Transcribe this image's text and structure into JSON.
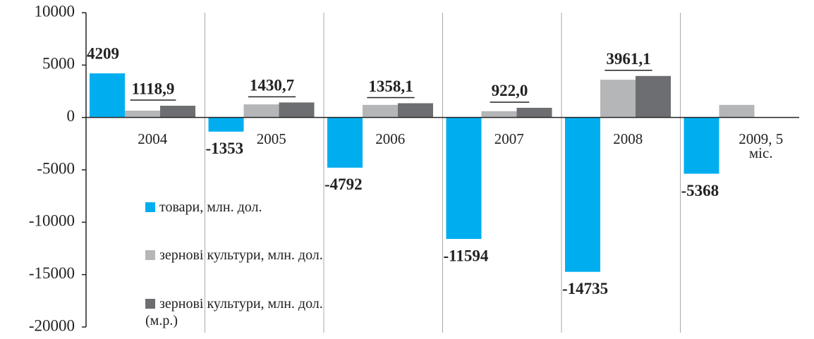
{
  "chart_data": {
    "type": "bar",
    "categories": [
      "2004",
      "2005",
      "2006",
      "2007",
      "2008",
      "2009, 5 міс."
    ],
    "series": [
      {
        "name": "товари, млн. дол.",
        "color": "#00aeef",
        "values": [
          4209,
          -1353,
          -4792,
          -11594,
          -14735,
          -5368
        ]
      },
      {
        "name": "зернові культури, млн. дол.",
        "color": "#b5b6b8",
        "values": [
          650,
          1250,
          1200,
          600,
          3600,
          1200
        ]
      },
      {
        "name": "зернові культури, млн. дол. (м.р.)",
        "color": "#6d6e71",
        "values": [
          1118.9,
          1430.7,
          1358.1,
          922.0,
          3961.1,
          null
        ],
        "value_labels": [
          "1118,9",
          "1430,7",
          "1358,1",
          "922,0",
          "3961,1",
          null
        ]
      }
    ],
    "ylim": [
      -20000,
      10000
    ],
    "yticks": [
      -20000,
      -15000,
      -10000,
      -5000,
      0,
      5000,
      10000
    ]
  }
}
